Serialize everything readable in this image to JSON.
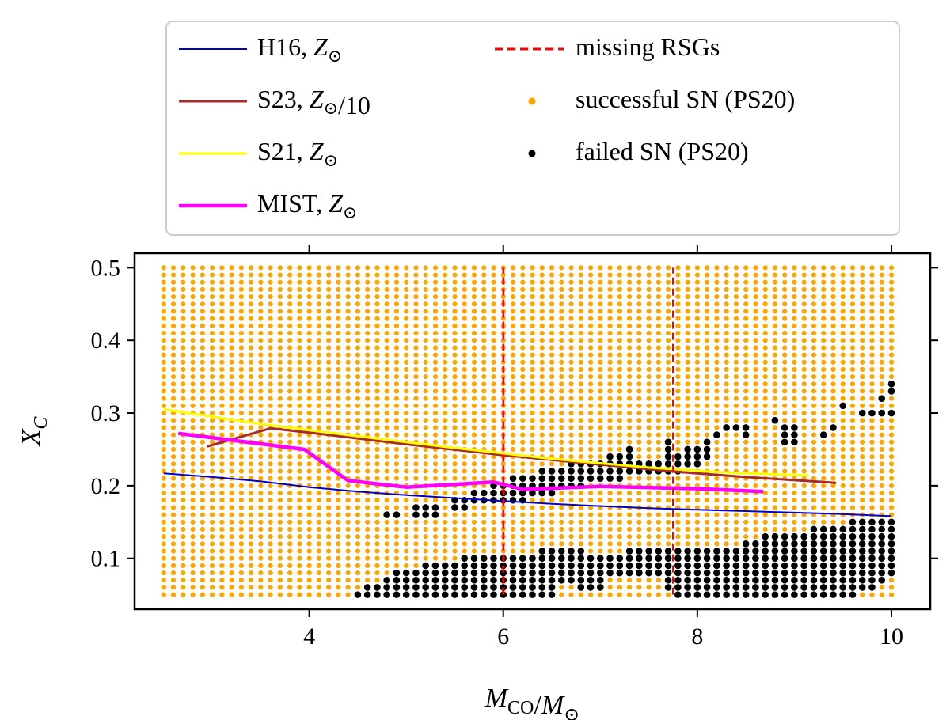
{
  "chart_data": {
    "type": "scatter",
    "title": "",
    "xlabel": "M_CO/M_⊙",
    "ylabel": "X_C",
    "xlim": [
      2.2,
      10.4
    ],
    "ylim": [
      0.03,
      0.52
    ],
    "xticks": [
      4,
      6,
      8,
      10
    ],
    "yticks": [
      0.1,
      0.2,
      0.3,
      0.4,
      0.5
    ],
    "xtick_labels": [
      "4",
      "6",
      "8",
      "10"
    ],
    "ytick_labels": [
      "0.1",
      "0.2",
      "0.3",
      "0.4",
      "0.5"
    ],
    "grid": false,
    "legend_position": "top (above axes)",
    "colors": {
      "successful": "#FFA500",
      "failed": "#000000",
      "H16": "#0000CC",
      "S23": "#A52A2A",
      "S21": "#FFFF00",
      "MIST": "#FF00FF",
      "missing": "#FF0000"
    },
    "grid_points": {
      "x_start": 2.5,
      "x_end": 10.0,
      "x_step": 0.1,
      "y_start": 0.05,
      "y_end": 0.5,
      "y_step": 0.01
    },
    "failed_regions": {
      "lower_band": [
        [
          4.5,
          0.05,
          0.05
        ],
        [
          4.6,
          0.05,
          0.06
        ],
        [
          4.7,
          0.05,
          0.06
        ],
        [
          4.8,
          0.05,
          0.07
        ],
        [
          4.9,
          0.05,
          0.08
        ],
        [
          5.0,
          0.05,
          0.08
        ],
        [
          5.1,
          0.05,
          0.08
        ],
        [
          5.2,
          0.05,
          0.09
        ],
        [
          5.3,
          0.05,
          0.09
        ],
        [
          5.4,
          0.05,
          0.09
        ],
        [
          5.5,
          0.05,
          0.09
        ],
        [
          5.6,
          0.05,
          0.1
        ],
        [
          5.7,
          0.05,
          0.1
        ],
        [
          5.8,
          0.05,
          0.1
        ],
        [
          5.9,
          0.05,
          0.1
        ],
        [
          6.0,
          0.05,
          0.1
        ],
        [
          6.1,
          0.05,
          0.1
        ],
        [
          6.2,
          0.05,
          0.1
        ],
        [
          6.3,
          0.05,
          0.1
        ],
        [
          6.4,
          0.05,
          0.11
        ],
        [
          6.5,
          0.05,
          0.11
        ],
        [
          6.6,
          0.07,
          0.11
        ],
        [
          6.7,
          0.07,
          0.11
        ],
        [
          6.8,
          0.06,
          0.11
        ],
        [
          6.9,
          0.06,
          0.1
        ],
        [
          7.0,
          0.06,
          0.1
        ],
        [
          7.1,
          0.08,
          0.1
        ],
        [
          7.2,
          0.08,
          0.1
        ],
        [
          7.3,
          0.08,
          0.11
        ],
        [
          7.4,
          0.08,
          0.11
        ],
        [
          7.5,
          0.08,
          0.11
        ],
        [
          7.6,
          0.08,
          0.11
        ],
        [
          7.7,
          0.06,
          0.11
        ],
        [
          7.8,
          0.05,
          0.11
        ],
        [
          7.9,
          0.05,
          0.11
        ],
        [
          8.0,
          0.05,
          0.11
        ],
        [
          8.1,
          0.05,
          0.11
        ],
        [
          8.2,
          0.05,
          0.11
        ],
        [
          8.3,
          0.05,
          0.11
        ],
        [
          8.4,
          0.05,
          0.11
        ],
        [
          8.5,
          0.05,
          0.12
        ],
        [
          8.6,
          0.05,
          0.12
        ],
        [
          8.7,
          0.05,
          0.13
        ],
        [
          8.8,
          0.05,
          0.13
        ],
        [
          8.9,
          0.05,
          0.13
        ],
        [
          9.0,
          0.05,
          0.13
        ],
        [
          9.1,
          0.05,
          0.13
        ],
        [
          9.2,
          0.05,
          0.14
        ],
        [
          9.3,
          0.05,
          0.14
        ],
        [
          9.4,
          0.05,
          0.14
        ],
        [
          9.5,
          0.05,
          0.14
        ],
        [
          9.6,
          0.05,
          0.15
        ],
        [
          9.7,
          0.06,
          0.15
        ],
        [
          9.8,
          0.06,
          0.15
        ],
        [
          9.9,
          0.07,
          0.15
        ],
        [
          10.0,
          0.08,
          0.15
        ]
      ],
      "upper_band": [
        [
          4.8,
          0.16,
          0.16
        ],
        [
          4.9,
          0.16,
          0.16
        ],
        [
          5.1,
          0.16,
          0.17
        ],
        [
          5.2,
          0.16,
          0.17
        ],
        [
          5.3,
          0.16,
          0.17
        ],
        [
          5.5,
          0.17,
          0.18
        ],
        [
          5.6,
          0.17,
          0.18
        ],
        [
          5.7,
          0.18,
          0.19
        ],
        [
          5.8,
          0.18,
          0.19
        ],
        [
          5.9,
          0.18,
          0.2
        ],
        [
          6.0,
          0.18,
          0.2
        ],
        [
          6.1,
          0.18,
          0.21
        ],
        [
          6.2,
          0.18,
          0.21
        ],
        [
          6.3,
          0.19,
          0.21
        ],
        [
          6.4,
          0.19,
          0.22
        ],
        [
          6.5,
          0.19,
          0.22
        ],
        [
          6.6,
          0.2,
          0.22
        ],
        [
          6.7,
          0.2,
          0.23
        ],
        [
          6.8,
          0.2,
          0.23
        ],
        [
          6.9,
          0.21,
          0.23
        ],
        [
          7.0,
          0.21,
          0.23
        ],
        [
          7.1,
          0.21,
          0.24
        ],
        [
          7.2,
          0.21,
          0.24
        ],
        [
          7.3,
          0.22,
          0.25
        ],
        [
          7.4,
          0.22,
          0.23
        ],
        [
          7.5,
          0.22,
          0.23
        ],
        [
          7.6,
          0.22,
          0.23
        ],
        [
          7.7,
          0.22,
          0.26
        ],
        [
          7.8,
          0.22,
          0.24
        ],
        [
          7.9,
          0.23,
          0.25
        ],
        [
          8.0,
          0.23,
          0.25
        ],
        [
          8.1,
          0.24,
          0.26
        ]
      ],
      "scattered": [
        [
          7.3,
          0.25
        ],
        [
          7.7,
          0.26
        ],
        [
          8.2,
          0.27
        ],
        [
          8.3,
          0.28
        ],
        [
          8.4,
          0.28
        ],
        [
          8.5,
          0.27
        ],
        [
          8.5,
          0.28
        ],
        [
          8.8,
          0.29
        ],
        [
          8.9,
          0.28
        ],
        [
          9.0,
          0.27
        ],
        [
          8.9,
          0.26
        ],
        [
          9.0,
          0.26
        ],
        [
          9.3,
          0.27
        ],
        [
          9.4,
          0.28
        ],
        [
          9.5,
          0.31
        ],
        [
          9.7,
          0.3
        ],
        [
          9.8,
          0.3
        ],
        [
          9.9,
          0.32
        ],
        [
          10.0,
          0.33
        ],
        [
          10.0,
          0.34
        ],
        [
          9.9,
          0.3
        ],
        [
          10.0,
          0.3
        ],
        [
          8.9,
          0.27
        ],
        [
          9.0,
          0.28
        ]
      ]
    },
    "series": [
      {
        "name": "H16, Z_⊙",
        "type": "line",
        "color": "#0000CC",
        "linewidth": 2,
        "x": [
          2.5,
          3.0,
          3.5,
          4.0,
          4.5,
          5.0,
          5.5,
          6.0,
          6.5,
          7.0,
          7.5,
          8.0,
          8.5,
          9.0,
          9.5,
          10.0
        ],
        "y": [
          0.217,
          0.212,
          0.206,
          0.198,
          0.192,
          0.187,
          0.183,
          0.179,
          0.175,
          0.172,
          0.169,
          0.167,
          0.165,
          0.163,
          0.161,
          0.158
        ]
      },
      {
        "name": "S23, Z_⊙/10",
        "type": "line",
        "color": "#A52A2A",
        "linewidth": 3,
        "x": [
          2.95,
          3.6,
          4.0,
          5.0,
          6.0,
          7.0,
          7.8,
          8.5,
          9.43
        ],
        "y": [
          0.254,
          0.279,
          0.273,
          0.257,
          0.242,
          0.229,
          0.219,
          0.212,
          0.204
        ]
      },
      {
        "name": "S21, Z_⊙",
        "type": "line",
        "color": "#FFFF00",
        "linewidth": 3,
        "x": [
          2.5,
          3.5,
          4.5,
          5.5,
          6.5,
          7.5,
          8.3,
          9.15
        ],
        "y": [
          0.305,
          0.285,
          0.268,
          0.252,
          0.237,
          0.225,
          0.218,
          0.214
        ]
      },
      {
        "name": "MIST, Z_⊙",
        "type": "line",
        "color": "#FF00FF",
        "linewidth": 4.5,
        "x": [
          2.65,
          3.95,
          4.4,
          5.0,
          5.9,
          6.2,
          7.0,
          8.0,
          8.68
        ],
        "y": [
          0.272,
          0.25,
          0.207,
          0.198,
          0.205,
          0.195,
          0.199,
          0.196,
          0.192
        ]
      },
      {
        "name": "missing RSGs",
        "type": "vline",
        "color": "#FF0000",
        "linestyle": "dashed",
        "x": [
          6.0,
          7.75
        ],
        "ymin": 0.05,
        "ymax": 0.5
      },
      {
        "name": "successful SN (PS20)",
        "type": "scatter",
        "color": "#FFA500"
      },
      {
        "name": "failed SN (PS20)",
        "type": "scatter",
        "color": "#000000"
      }
    ]
  }
}
